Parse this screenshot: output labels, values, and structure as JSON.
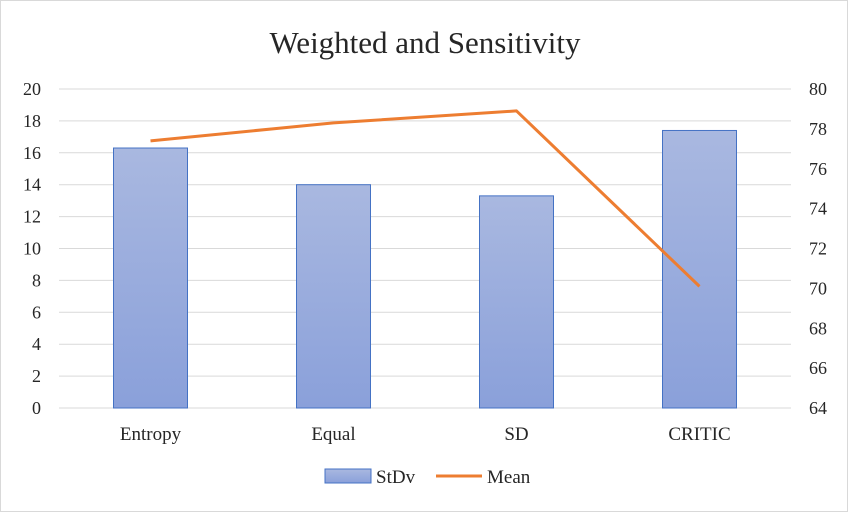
{
  "chart_data": {
    "type": "bar",
    "title": "Weighted and Sensitivity",
    "categories": [
      "Entropy",
      "Equal",
      "SD",
      "CRITIC"
    ],
    "series": [
      {
        "name": "StDv",
        "type": "bar",
        "axis": "left",
        "values": [
          16.3,
          14.0,
          13.3,
          17.4
        ],
        "color": "#8faadc"
      },
      {
        "name": "Mean",
        "type": "line",
        "axis": "right",
        "values": [
          77.4,
          78.3,
          78.9,
          70.1
        ],
        "color": "#ed7d31"
      }
    ],
    "y_left": {
      "min": 0,
      "max": 20,
      "step": 2,
      "ticks": [
        "0",
        "2",
        "4",
        "6",
        "8",
        "10",
        "12",
        "14",
        "16",
        "18",
        "20"
      ]
    },
    "y_right": {
      "min": 64,
      "max": 80,
      "step": 2,
      "ticks": [
        "64",
        "66",
        "68",
        "70",
        "72",
        "74",
        "76",
        "78",
        "80"
      ]
    },
    "grid": true,
    "legend": {
      "position": "bottom",
      "entries": [
        "StDv",
        "Mean"
      ]
    },
    "colors": {
      "bar_top": "#a9b8e0",
      "bar_bottom": "#8aa0da",
      "bar_border": "#4472c4",
      "line": "#ed7d31"
    }
  }
}
